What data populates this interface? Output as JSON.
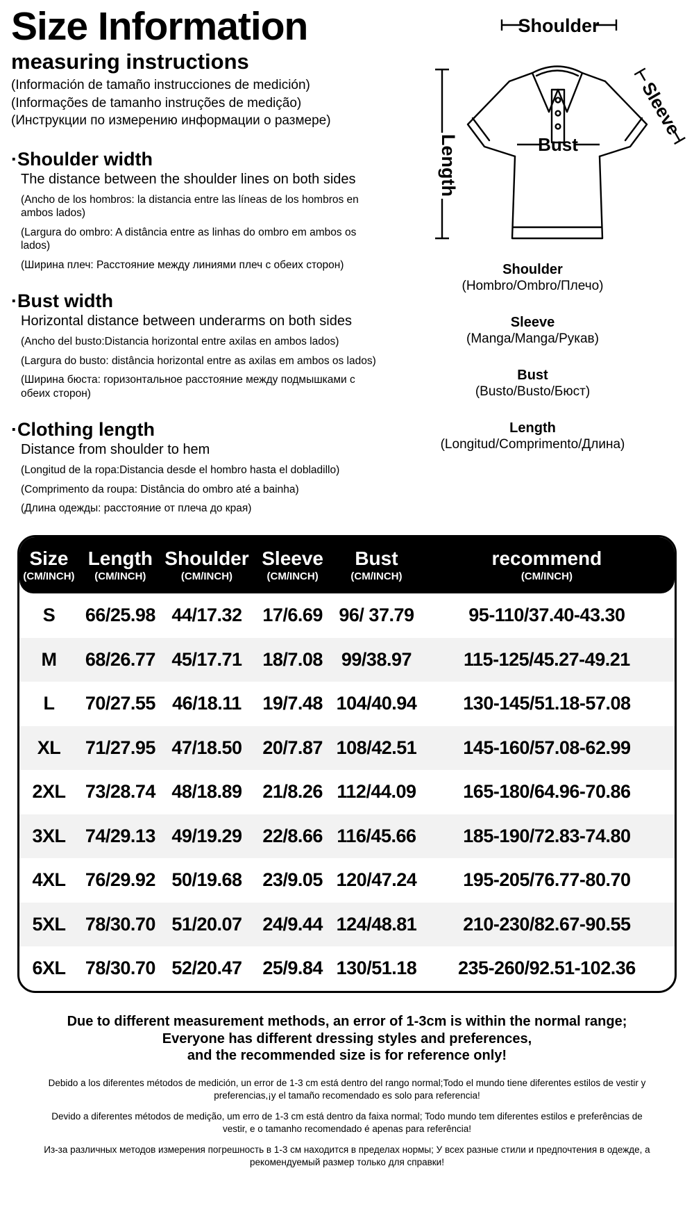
{
  "page": {
    "title": "Size Information",
    "subtitle": "measuring instructions",
    "bullet": "·",
    "intro_translations": [
      "(Información de tamaño instrucciones de medición)",
      "(Informações de tamanho instruções de medição)",
      "(Инструкции по измерению информации о размере)"
    ]
  },
  "sections": [
    {
      "heading": "Shoulder width",
      "description": "The distance between the shoulder lines on both sides",
      "translations": [
        "(Ancho de los hombros: la distancia entre las líneas de los hombros en ambos lados)",
        "(Largura do ombro: A distância entre as linhas do ombro em ambos os lados)",
        "(Ширина плеч: Расстояние между линиями плеч с обеих сторон)"
      ]
    },
    {
      "heading": "Bust width",
      "description": "Horizontal distance between underarms on both sides",
      "translations": [
        "(Ancho del busto:Distancia horizontal entre axilas en ambos lados)",
        "(Largura do busto: distância horizontal entre as axilas em ambos os lados)",
        "(Ширина бюста: горизонтальное расстояние между подмышками с обеих сторон)"
      ]
    },
    {
      "heading": "Clothing length",
      "description": "Distance from shoulder to hem",
      "translations": [
        "(Longitud de la ropa:Distancia desde el hombro hasta el dobladillo)",
        "(Comprimento da roupa: Distância do ombro até a bainha)",
        "(Длина одежды: расстояние от плеча до края)"
      ]
    }
  ],
  "diagram": {
    "shoulder_label": "Shoulder",
    "length_label": "Length",
    "sleeve_label": "Sleeve",
    "bust_label": "Bust",
    "legend": [
      {
        "term": "Shoulder",
        "translation": "(Hombro/Ombro/Плечо)"
      },
      {
        "term": "Sleeve",
        "translation": "(Manga/Manga/Рукав)"
      },
      {
        "term": "Bust",
        "translation": "(Busto/Busto/Бюст)"
      },
      {
        "term": "Length",
        "translation": "(Longitud/Comprimento/Длина)"
      }
    ]
  },
  "size_table": {
    "unit_note": "(CM/INCH)",
    "columns": [
      "Size",
      "Length",
      "Shoulder",
      "Sleeve",
      "Bust",
      "recommend"
    ],
    "rows": [
      [
        "S",
        "66/25.98",
        "44/17.32",
        "17/6.69",
        "96/ 37.79",
        "95-110/37.40-43.30"
      ],
      [
        "M",
        "68/26.77",
        "45/17.71",
        "18/7.08",
        "99/38.97",
        "115-125/45.27-49.21"
      ],
      [
        "L",
        "70/27.55",
        "46/18.11",
        "19/7.48",
        "104/40.94",
        "130-145/51.18-57.08"
      ],
      [
        "XL",
        "71/27.95",
        "47/18.50",
        "20/7.87",
        "108/42.51",
        "145-160/57.08-62.99"
      ],
      [
        "2XL",
        "73/28.74",
        "48/18.89",
        "21/8.26",
        "112/44.09",
        "165-180/64.96-70.86"
      ],
      [
        "3XL",
        "74/29.13",
        "49/19.29",
        "22/8.66",
        "116/45.66",
        "185-190/72.83-74.80"
      ],
      [
        "4XL",
        "76/29.92",
        "50/19.68",
        "23/9.05",
        "120/47.24",
        "195-205/76.77-80.70"
      ],
      [
        "5XL",
        "78/30.70",
        "51/20.07",
        "24/9.44",
        "124/48.81",
        "210-230/82.67-90.55"
      ],
      [
        "6XL",
        "78/30.70",
        "52/20.47",
        "25/9.84",
        "130/51.18",
        "235-260/92.51-102.36"
      ]
    ]
  },
  "footer": {
    "note_lines": [
      "Due to different measurement methods, an error of 1-3cm is within the normal range;",
      "Everyone has different dressing styles and preferences,",
      "and the recommended size is for reference only!"
    ],
    "translations": [
      "Debido a los diferentes métodos de medición, un error de 1-3 cm está dentro del rango normal;Todo el mundo tiene diferentes estilos de vestir y preferencias,¡y el tamaño recomendado es solo para referencia!",
      "Devido a diferentes métodos de medição, um erro de 1-3 cm está dentro da faixa normal; Todo mundo tem diferentes estilos e preferências de vestir, e o tamanho recomendado é apenas para referência!",
      "Из-за различных методов измерения погрешность в 1-3 см находится в пределах нормы; У всех разные стили и предпочтения в одежде, а рекомендуемый размер только для справки!"
    ]
  },
  "colors": {
    "table_header_bg": "#000000",
    "table_header_text": "#ffffff",
    "row_alt_bg": "#f2f2f2",
    "ink": "#000000",
    "background": "#ffffff"
  }
}
